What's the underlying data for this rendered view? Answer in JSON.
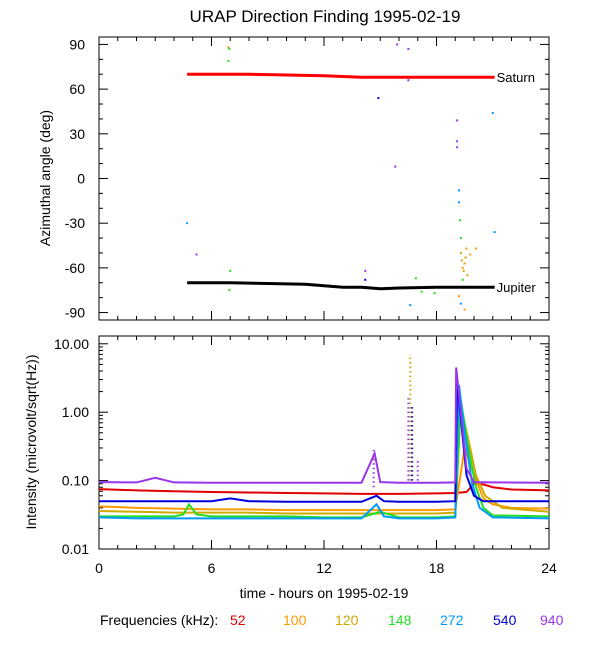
{
  "title": "URAP Direction Finding  1995-02-19",
  "x_axis": {
    "label": "time - hours on 1995-02-19",
    "range": [
      0,
      24
    ],
    "ticks": [
      0,
      6,
      12,
      18,
      24
    ],
    "tick_labels": [
      "0",
      "6",
      "12",
      "18",
      "24"
    ]
  },
  "frequencies": {
    "label": "Frequencies (kHz):",
    "items": [
      {
        "value": "52",
        "color": "#e00000"
      },
      {
        "value": "100",
        "color": "#ff9900"
      },
      {
        "value": "120",
        "color": "#ccaa00"
      },
      {
        "value": "148",
        "color": "#22dd22"
      },
      {
        "value": "272",
        "color": "#0099ff"
      },
      {
        "value": "540",
        "color": "#0000dd"
      },
      {
        "value": "940",
        "color": "#9933ee"
      }
    ]
  },
  "chart_data": [
    {
      "type": "scatter",
      "panel": "top",
      "ylabel": "Azimuthal angle (deg)",
      "ylim": [
        -95,
        95
      ],
      "yticks": [
        90,
        60,
        30,
        0,
        -30,
        -60,
        -90
      ],
      "ytick_labels": [
        "90",
        "60",
        "30",
        "0",
        "-30",
        "-60",
        "-90"
      ],
      "series": [
        {
          "name": "Saturn",
          "color": "#ff0000",
          "x": [
            4.7,
            8,
            10,
            12,
            13,
            14,
            16,
            18,
            20,
            21.1
          ],
          "y": [
            70,
            70,
            69.5,
            69,
            68.5,
            68,
            68,
            68,
            68,
            68
          ]
        },
        {
          "name": "Jupiter",
          "color": "#000000",
          "x": [
            4.7,
            7,
            9,
            11,
            12,
            13,
            14,
            15,
            16,
            18,
            20,
            21.1
          ],
          "y": [
            -70,
            -70,
            -70.5,
            -71,
            -72,
            -73,
            -73,
            -74,
            -73.5,
            -73,
            -73,
            -73
          ]
        }
      ],
      "scatter_points": [
        {
          "x": 4.7,
          "y": -30,
          "color": "#0099ff"
        },
        {
          "x": 5.2,
          "y": -51,
          "color": "#9933ee"
        },
        {
          "x": 6.9,
          "y": 88,
          "color": "#ccaa00"
        },
        {
          "x": 6.95,
          "y": 87,
          "color": "#22dd22"
        },
        {
          "x": 6.9,
          "y": 79,
          "color": "#22dd22"
        },
        {
          "x": 7.0,
          "y": -62,
          "color": "#22dd22"
        },
        {
          "x": 6.95,
          "y": -75,
          "color": "#22dd22"
        },
        {
          "x": 14.2,
          "y": -62,
          "color": "#9933ee"
        },
        {
          "x": 14.2,
          "y": -68,
          "color": "#0000dd"
        },
        {
          "x": 14.3,
          "y": -73,
          "color": "#9933ee"
        },
        {
          "x": 14.9,
          "y": 54,
          "color": "#0000dd"
        },
        {
          "x": 15.9,
          "y": 90,
          "color": "#9933ee"
        },
        {
          "x": 15.8,
          "y": 8,
          "color": "#9933ee"
        },
        {
          "x": 16.5,
          "y": 87,
          "color": "#9933ee"
        },
        {
          "x": 16.5,
          "y": 66,
          "color": "#9933ee"
        },
        {
          "x": 16.6,
          "y": -85,
          "color": "#0099ff"
        },
        {
          "x": 16.9,
          "y": -67,
          "color": "#22dd22"
        },
        {
          "x": 17.2,
          "y": -76,
          "color": "#22dd22"
        },
        {
          "x": 17.6,
          "y": -73,
          "color": "#9933ee"
        },
        {
          "x": 17.9,
          "y": -77,
          "color": "#22dd22"
        },
        {
          "x": 19.1,
          "y": 39,
          "color": "#9933ee"
        },
        {
          "x": 19.1,
          "y": 25,
          "color": "#9933ee"
        },
        {
          "x": 19.1,
          "y": 21,
          "color": "#9933ee"
        },
        {
          "x": 19.2,
          "y": -8,
          "color": "#0099ff"
        },
        {
          "x": 19.2,
          "y": -16,
          "color": "#0099ff"
        },
        {
          "x": 19.25,
          "y": -28,
          "color": "#22dd22"
        },
        {
          "x": 19.3,
          "y": -40,
          "color": "#22dd22"
        },
        {
          "x": 19.3,
          "y": -50,
          "color": "#ccaa00"
        },
        {
          "x": 19.35,
          "y": -55,
          "color": "#ccaa00"
        },
        {
          "x": 19.4,
          "y": -60,
          "color": "#ff9900"
        },
        {
          "x": 19.45,
          "y": -62,
          "color": "#ccaa00"
        },
        {
          "x": 19.5,
          "y": -57,
          "color": "#ff9900"
        },
        {
          "x": 19.55,
          "y": -53,
          "color": "#ccaa00"
        },
        {
          "x": 19.6,
          "y": -47,
          "color": "#ff9900"
        },
        {
          "x": 19.65,
          "y": -65,
          "color": "#ccaa00"
        },
        {
          "x": 19.4,
          "y": -68,
          "color": "#22dd22"
        },
        {
          "x": 19.2,
          "y": -79,
          "color": "#ff9900"
        },
        {
          "x": 19.3,
          "y": -84,
          "color": "#0099ff"
        },
        {
          "x": 19.5,
          "y": -88,
          "color": "#ff9900"
        },
        {
          "x": 19.8,
          "y": -51,
          "color": "#ccaa00"
        },
        {
          "x": 20.1,
          "y": -47,
          "color": "#ff9900"
        },
        {
          "x": 21.0,
          "y": 44,
          "color": "#0099ff"
        },
        {
          "x": 21.1,
          "y": -36,
          "color": "#0099ff"
        }
      ]
    },
    {
      "type": "line",
      "panel": "bottom",
      "ylabel": "Intensity (microvolt/sqrt(Hz))",
      "yscale": "log",
      "ylim": [
        0.01,
        13
      ],
      "yticks": [
        10,
        1,
        0.1,
        0.01
      ],
      "ytick_labels": [
        "10.00",
        "1.00",
        "0.10",
        "0.01"
      ],
      "series": [
        {
          "name": "52",
          "color": "#e00000",
          "x": [
            0,
            2,
            4,
            6,
            8,
            10,
            12,
            14,
            16,
            18,
            19,
            19.6,
            20,
            20.5,
            21,
            22,
            24
          ],
          "y": [
            0.075,
            0.072,
            0.07,
            0.068,
            0.067,
            0.066,
            0.065,
            0.064,
            0.064,
            0.065,
            0.066,
            0.068,
            0.09,
            0.088,
            0.08,
            0.074,
            0.072
          ]
        },
        {
          "name": "100",
          "color": "#ff9900",
          "x": [
            0,
            2,
            4,
            6,
            8,
            10,
            12,
            14,
            16,
            18,
            19,
            19.5,
            20,
            20.5,
            21,
            22,
            24
          ],
          "y": [
            0.042,
            0.04,
            0.039,
            0.038,
            0.038,
            0.037,
            0.037,
            0.037,
            0.037,
            0.037,
            0.038,
            0.3,
            0.12,
            0.055,
            0.045,
            0.04,
            0.039
          ]
        },
        {
          "name": "120",
          "color": "#ccaa00",
          "x": [
            0,
            2,
            4,
            6,
            8,
            10,
            12,
            14,
            16,
            18,
            19,
            19.3,
            19.7,
            20.1,
            20.6,
            21.5,
            24
          ],
          "y": [
            0.036,
            0.035,
            0.034,
            0.034,
            0.034,
            0.033,
            0.033,
            0.033,
            0.033,
            0.033,
            0.034,
            1.2,
            0.4,
            0.12,
            0.06,
            0.04,
            0.035
          ]
        },
        {
          "name": "148",
          "color": "#22dd22",
          "x": [
            0,
            2,
            4,
            4.5,
            4.8,
            5.2,
            6,
            8,
            10,
            12,
            14,
            15,
            16,
            18,
            19,
            19.3,
            19.7,
            20.1,
            20.5,
            21,
            24
          ],
          "y": [
            0.03,
            0.03,
            0.03,
            0.032,
            0.045,
            0.032,
            0.03,
            0.03,
            0.03,
            0.029,
            0.029,
            0.035,
            0.029,
            0.029,
            0.03,
            1.5,
            0.3,
            0.08,
            0.04,
            0.031,
            0.03
          ]
        },
        {
          "name": "272",
          "color": "#0099ff",
          "x": [
            0,
            2,
            4,
            6,
            8,
            10,
            12,
            14,
            14.8,
            15.2,
            16,
            18,
            19,
            19.2,
            19.5,
            19.9,
            20.3,
            21,
            24
          ],
          "y": [
            0.029,
            0.028,
            0.028,
            0.028,
            0.028,
            0.028,
            0.028,
            0.028,
            0.045,
            0.03,
            0.028,
            0.028,
            0.029,
            2.5,
            0.5,
            0.09,
            0.04,
            0.029,
            0.028
          ]
        },
        {
          "name": "540",
          "color": "#0000dd",
          "x": [
            0,
            2,
            4,
            6,
            7,
            8,
            10,
            12,
            14,
            14.8,
            15.2,
            16,
            18,
            19,
            19.1,
            19.3,
            19.6,
            20,
            20.5,
            21,
            24
          ],
          "y": [
            0.05,
            0.05,
            0.05,
            0.05,
            0.055,
            0.05,
            0.049,
            0.049,
            0.049,
            0.06,
            0.05,
            0.049,
            0.049,
            0.05,
            3.0,
            0.8,
            0.12,
            0.06,
            0.05,
            0.05,
            0.05
          ]
        },
        {
          "name": "940",
          "color": "#9933ee",
          "x": [
            0,
            2,
            3,
            4,
            6,
            8,
            10,
            12,
            14,
            14.7,
            15,
            16,
            18,
            19,
            19.05,
            19.3,
            19.6,
            20,
            21,
            24
          ],
          "y": [
            0.095,
            0.094,
            0.11,
            0.094,
            0.093,
            0.093,
            0.093,
            0.093,
            0.093,
            0.25,
            0.095,
            0.093,
            0.093,
            0.094,
            4.5,
            1.0,
            0.15,
            0.095,
            0.094,
            0.093
          ]
        }
      ],
      "spikes": [
        {
          "x": 14.65,
          "ymin": 0.08,
          "ymax": 0.28,
          "color": "#9933ee"
        },
        {
          "x": 16.5,
          "ymin": 0.1,
          "ymax": 1.6,
          "color": "#9933ee"
        },
        {
          "x": 16.6,
          "ymin": 0.1,
          "ymax": 7.0,
          "color": "#ccaa00"
        },
        {
          "x": 16.7,
          "ymin": 0.1,
          "ymax": 1.2,
          "color": "#0000dd"
        },
        {
          "x": 17.0,
          "ymin": 0.1,
          "ymax": 0.2,
          "color": "#9933ee"
        }
      ]
    }
  ]
}
